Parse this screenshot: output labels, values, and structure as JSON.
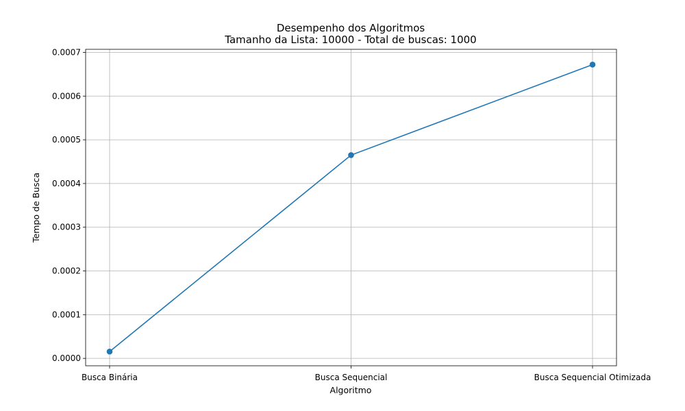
{
  "chart_data": {
    "type": "line",
    "title": "Desempenho dos Algoritmos",
    "subtitle": "Tamanho da Lista: 10000 - Total de buscas: 1000",
    "xlabel": "Algoritmo",
    "ylabel": "Tempo de Busca",
    "categories": [
      "Busca Binária",
      "Busca Sequencial",
      "Busca Sequencial Otimizada"
    ],
    "series": [
      {
        "values": [
          1.55e-05,
          0.000465,
          0.000672
        ],
        "color": "#1f77b4",
        "marker": "circle"
      }
    ],
    "ylim": [
      -1.7e-05,
      0.000707
    ],
    "yticks": [
      "0.0000",
      "0.0001",
      "0.0002",
      "0.0003",
      "0.0004",
      "0.0005",
      "0.0006",
      "0.0007"
    ],
    "ytick_values": [
      0,
      0.0001,
      0.0002,
      0.0003,
      0.0004,
      0.0005,
      0.0006,
      0.0007
    ],
    "grid": true,
    "legend": "none"
  }
}
